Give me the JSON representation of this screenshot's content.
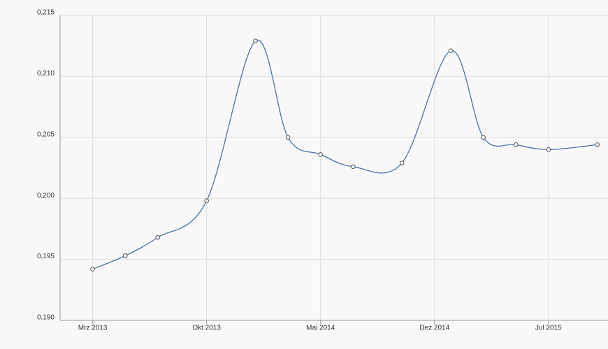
{
  "chart_data": {
    "type": "line",
    "x": [
      "2013-03",
      "2013-05",
      "2013-07",
      "2013-10",
      "2014-01",
      "2014-03",
      "2014-05",
      "2014-07",
      "2014-10",
      "2015-01",
      "2015-03",
      "2015-05",
      "2015-07",
      "2015-10"
    ],
    "series": [
      {
        "color": "#4572a7",
        "values": [
          0.1942,
          0.1953,
          0.1968,
          0.1998,
          0.2129,
          0.205,
          0.2036,
          0.2026,
          0.2029,
          0.2121,
          0.205,
          0.2044,
          0.204,
          0.2044
        ]
      }
    ],
    "xlim": [
      "2013-01",
      "2015-11"
    ],
    "xticks": [
      {
        "value": "2013-03",
        "label": "Mrz 2013"
      },
      {
        "value": "2013-10",
        "label": "Okt 2013"
      },
      {
        "value": "2014-05",
        "label": "Mai 2014"
      },
      {
        "value": "2014-12",
        "label": "Dez 2014"
      },
      {
        "value": "2015-07",
        "label": "Jul 2015"
      }
    ],
    "ylim": [
      0.19,
      0.215
    ],
    "yticks": [
      {
        "value": 0.19,
        "label": "0,190"
      },
      {
        "value": 0.195,
        "label": "0,195"
      },
      {
        "value": 0.2,
        "label": "0,200"
      },
      {
        "value": 0.205,
        "label": "0,205"
      },
      {
        "value": 0.21,
        "label": "0,210"
      },
      {
        "value": 0.215,
        "label": "0,215"
      }
    ],
    "grid": true
  }
}
